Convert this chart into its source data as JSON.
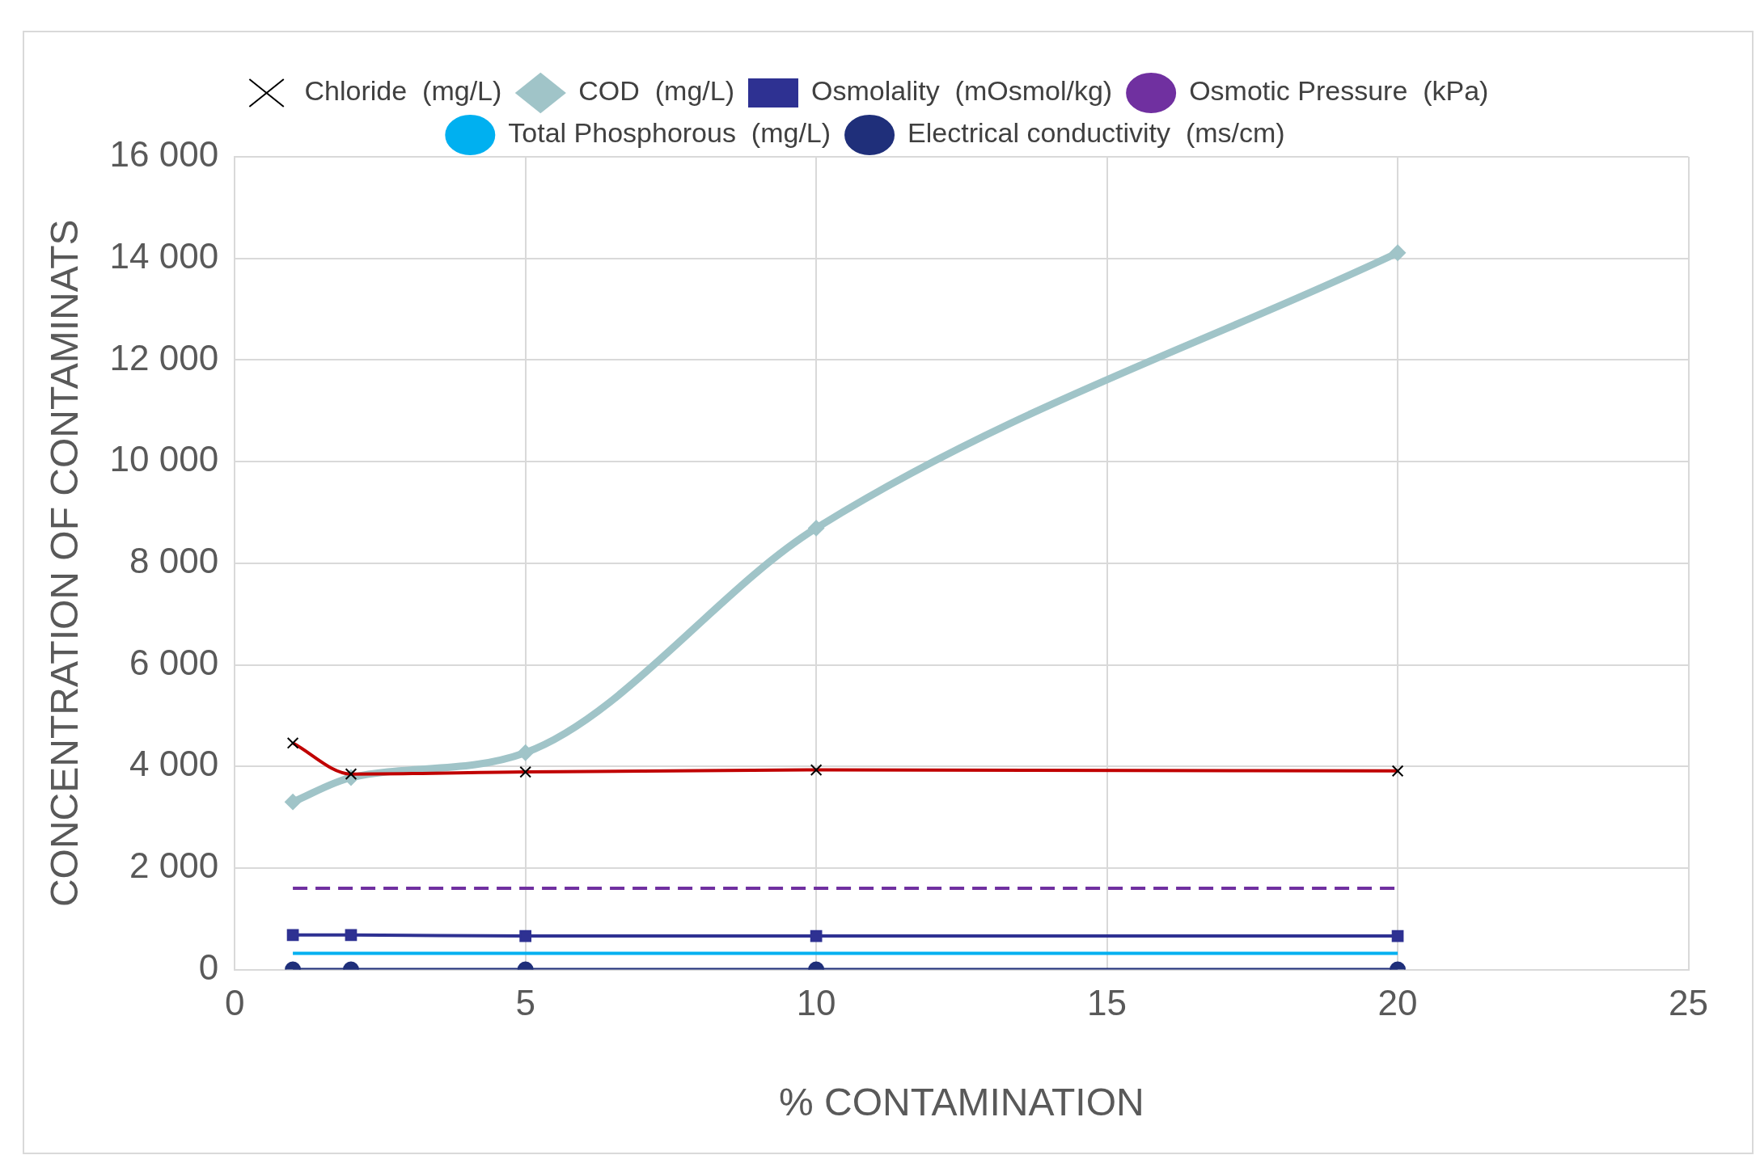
{
  "chart_data": {
    "type": "line",
    "xlabel": "% CONTAMINATION",
    "ylabel": "CONCENTRATION OF CONTAMINATS",
    "x": [
      1,
      2,
      5,
      10,
      20
    ],
    "xlim": [
      0,
      25
    ],
    "xticks": [
      0,
      5,
      10,
      15,
      20,
      25
    ],
    "ylim": [
      0,
      16000
    ],
    "yticks": [
      {
        "value": 0,
        "label": "0"
      },
      {
        "value": 2000,
        "label": "2 000"
      },
      {
        "value": 4000,
        "label": "4 000"
      },
      {
        "value": 6000,
        "label": "6 000"
      },
      {
        "value": 8000,
        "label": "8 000"
      },
      {
        "value": 10000,
        "label": "10 000"
      },
      {
        "value": 12000,
        "label": "12 000"
      },
      {
        "value": 14000,
        "label": "14 000"
      },
      {
        "value": 16000,
        "label": "16 000"
      }
    ],
    "grid": true,
    "legend": "top",
    "series": [
      {
        "name": "COD  (mg/L)",
        "color": "#a0c4c8",
        "marker": "diamond",
        "line_style": "solid",
        "values": [
          3300,
          3780,
          4270,
          8690,
          14110
        ]
      },
      {
        "name": "Osmolality  (mOsmol/kg)",
        "color": "#2e3192",
        "marker": "square",
        "line_style": "solid",
        "values": [
          680,
          680,
          660,
          660,
          660
        ]
      },
      {
        "name": "Osmotic Pressure  (kPa)",
        "color": "#7030a0",
        "marker": "none",
        "line_style": "dashed",
        "values": [
          1600,
          1600,
          1600,
          1600,
          1600
        ]
      },
      {
        "name": "Chloride  (mg/L)",
        "color": "#c00000",
        "marker": "cross",
        "line_style": "solid",
        "values": [
          4460,
          3850,
          3890,
          3930,
          3910
        ]
      },
      {
        "name": "Total Phosphorous  (mg/L)",
        "color": "#00b0f0",
        "marker": "none",
        "line_style": "solid",
        "values": [
          320,
          320,
          320,
          320,
          320
        ]
      },
      {
        "name": "Electrical conductivity  (ms/cm)",
        "color": "#1f2f7a",
        "marker": "circle",
        "line_style": "solid",
        "values": [
          0,
          0,
          0,
          0,
          0
        ]
      }
    ]
  }
}
